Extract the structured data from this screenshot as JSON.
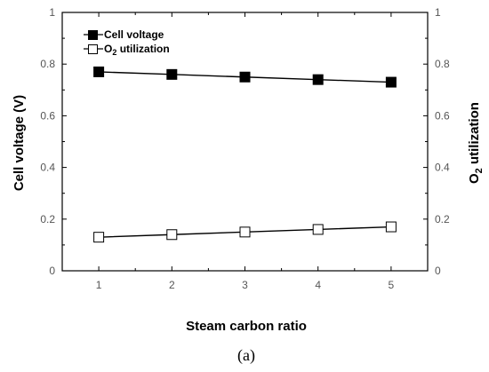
{
  "chart_data": {
    "type": "line",
    "x": [
      1,
      2,
      3,
      4,
      5
    ],
    "xlabel": "Steam carbon ratio",
    "ylabel_left": "Cell voltage (V)",
    "ylabel_right_main": "O",
    "ylabel_right_sub": "2",
    "ylabel_right_rest": " utilization",
    "xlim": [
      0.5,
      5.5
    ],
    "ylim_left": [
      0,
      1
    ],
    "ylim_right": [
      0,
      1
    ],
    "x_ticks": [
      "1",
      "2",
      "3",
      "4",
      "5"
    ],
    "y_ticks_left": [
      "0",
      "0.2",
      "0.4",
      "0.6",
      "0.8",
      "1"
    ],
    "y_ticks_right": [
      "0",
      "0.2",
      "0.4",
      "0.6",
      "0.8",
      "1"
    ],
    "grid": false,
    "legend_position": "top-left",
    "series": [
      {
        "name": "Cell voltage",
        "axis": "left",
        "marker": "filled-square",
        "values": [
          0.77,
          0.76,
          0.75,
          0.74,
          0.73
        ]
      },
      {
        "name_main": "O",
        "name_sub": "2",
        "name_rest": " utilization",
        "axis": "right",
        "marker": "open-square",
        "values": [
          0.13,
          0.14,
          0.15,
          0.16,
          0.17
        ]
      }
    ],
    "caption": "(a)"
  }
}
